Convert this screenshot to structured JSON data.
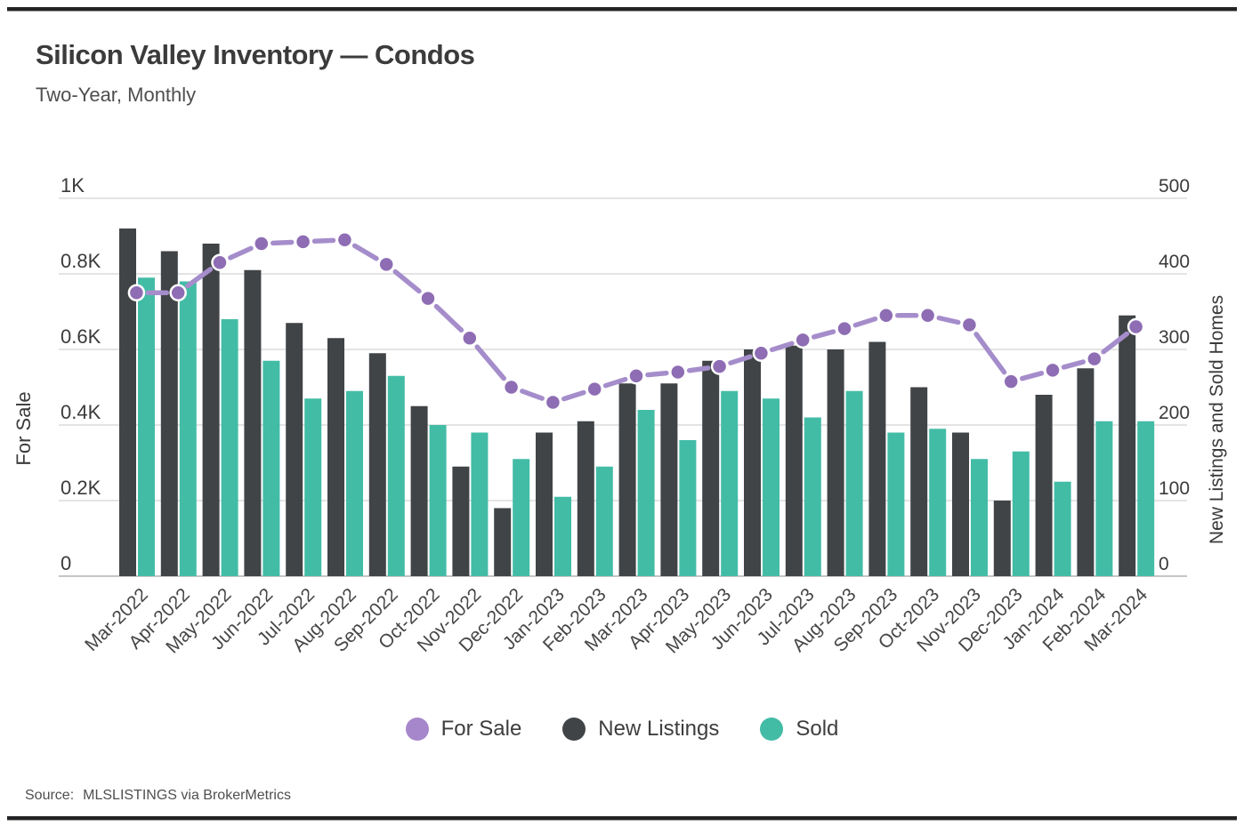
{
  "header": {
    "title": "Silicon Valley Inventory — Condos",
    "subtitle": "Two-Year, Monthly"
  },
  "chart_data": {
    "type": "combo",
    "categories": [
      "Mar-2022",
      "Apr-2022",
      "May-2022",
      "Jun-2022",
      "Jul-2022",
      "Aug-2022",
      "Sep-2022",
      "Oct-2022",
      "Nov-2022",
      "Dec-2022",
      "Jan-2023",
      "Feb-2023",
      "Mar-2023",
      "Apr-2023",
      "May-2023",
      "Jun-2023",
      "Jul-2023",
      "Aug-2023",
      "Sep-2023",
      "Oct-2023",
      "Nov-2023",
      "Dec-2023",
      "Jan-2024",
      "Feb-2024",
      "Mar-2024"
    ],
    "series": [
      {
        "name": "For Sale",
        "type": "line",
        "axis": "left",
        "marker_color": "#8e6db4",
        "line_color": "#a58dcb",
        "values": [
          750,
          750,
          830,
          880,
          885,
          890,
          825,
          735,
          630,
          500,
          460,
          495,
          530,
          540,
          555,
          590,
          625,
          655,
          690,
          690,
          665,
          515,
          545,
          575,
          660
        ]
      },
      {
        "name": "New Listings",
        "type": "bar",
        "axis": "right",
        "color": "#414447",
        "values": [
          460,
          430,
          440,
          405,
          335,
          315,
          295,
          225,
          145,
          90,
          190,
          205,
          255,
          255,
          285,
          300,
          305,
          300,
          310,
          250,
          190,
          100,
          240,
          275,
          345
        ]
      },
      {
        "name": "Sold",
        "type": "bar",
        "axis": "right",
        "color": "#43bca6",
        "values": [
          395,
          390,
          340,
          285,
          235,
          245,
          265,
          200,
          190,
          155,
          105,
          145,
          220,
          180,
          245,
          235,
          210,
          245,
          190,
          195,
          155,
          165,
          125,
          205,
          205
        ]
      }
    ],
    "left_axis": {
      "title": "For Sale",
      "min": 0,
      "max": 1000,
      "ticks": [
        {
          "v": 0,
          "label": "0"
        },
        {
          "v": 200,
          "label": "0.2K"
        },
        {
          "v": 400,
          "label": "0.4K"
        },
        {
          "v": 600,
          "label": "0.6K"
        },
        {
          "v": 800,
          "label": "0.8K"
        },
        {
          "v": 1000,
          "label": "1K"
        }
      ]
    },
    "right_axis": {
      "title": "New Listings and Sold Homes",
      "min": 0,
      "max": 500,
      "ticks": [
        {
          "v": 0,
          "label": "0"
        },
        {
          "v": 100,
          "label": "100"
        },
        {
          "v": 200,
          "label": "200"
        },
        {
          "v": 300,
          "label": "300"
        },
        {
          "v": 400,
          "label": "400"
        },
        {
          "v": 500,
          "label": "500"
        }
      ]
    },
    "grid": true,
    "legend_position": "bottom"
  },
  "legend": {
    "items": [
      {
        "label": "For Sale",
        "color": "#a687cb"
      },
      {
        "label": "New Listings",
        "color": "#414447"
      },
      {
        "label": "Sold",
        "color": "#43bca6"
      }
    ]
  },
  "footer": {
    "source_prefix": "Source:",
    "source_text": "MLSLISTINGS via BrokerMetrics"
  },
  "colors": {
    "grid_line": "#e4e4e4",
    "axis_line": "#c6c6c6",
    "tick_text": "#3a3a3a",
    "x_label_text": "#464646"
  }
}
